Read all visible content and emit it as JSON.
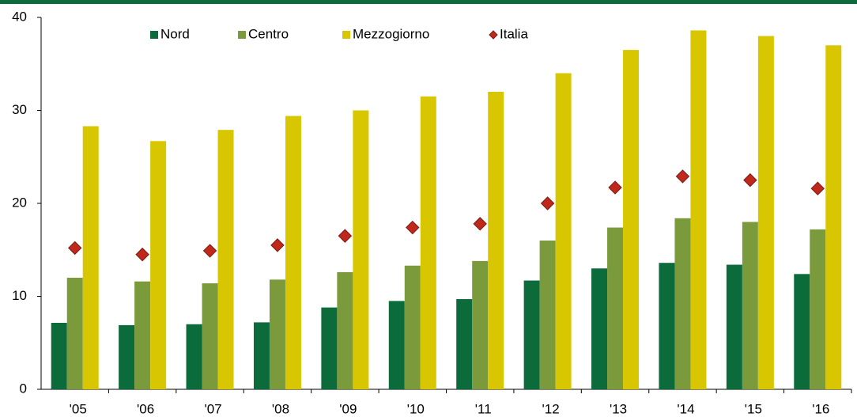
{
  "chart_data": {
    "type": "bar",
    "categories": [
      "'05",
      "'06",
      "'07",
      "'08",
      "'09",
      "'10",
      "'11",
      "'12",
      "'13",
      "'14",
      "'15",
      "'16"
    ],
    "series": [
      {
        "name": "Nord",
        "type": "bar",
        "color": "#0b6b3a",
        "values": [
          7.15,
          6.9,
          7.0,
          7.2,
          8.8,
          9.5,
          9.7,
          11.7,
          13.0,
          13.6,
          13.4,
          12.4
        ]
      },
      {
        "name": "Centro",
        "type": "bar",
        "color": "#7b9a3b",
        "values": [
          12.0,
          11.6,
          11.4,
          11.8,
          12.6,
          13.3,
          13.8,
          16.0,
          17.4,
          18.4,
          18.0,
          17.2
        ]
      },
      {
        "name": "Mezzogiorno",
        "type": "bar",
        "color": "#d8c700",
        "values": [
          28.3,
          26.7,
          27.9,
          29.4,
          30.0,
          31.5,
          32.0,
          34.0,
          36.5,
          38.6,
          38.0,
          37.0
        ]
      },
      {
        "name": "Italia",
        "type": "scatter",
        "color": "#c0281c",
        "values": [
          15.2,
          14.5,
          14.9,
          15.5,
          16.5,
          17.4,
          17.8,
          20.0,
          21.7,
          22.9,
          22.5,
          21.6
        ]
      }
    ],
    "ylim": [
      0,
      40
    ],
    "yticks": [
      0,
      10,
      20,
      30,
      40
    ],
    "grid": false,
    "legend": "top"
  }
}
